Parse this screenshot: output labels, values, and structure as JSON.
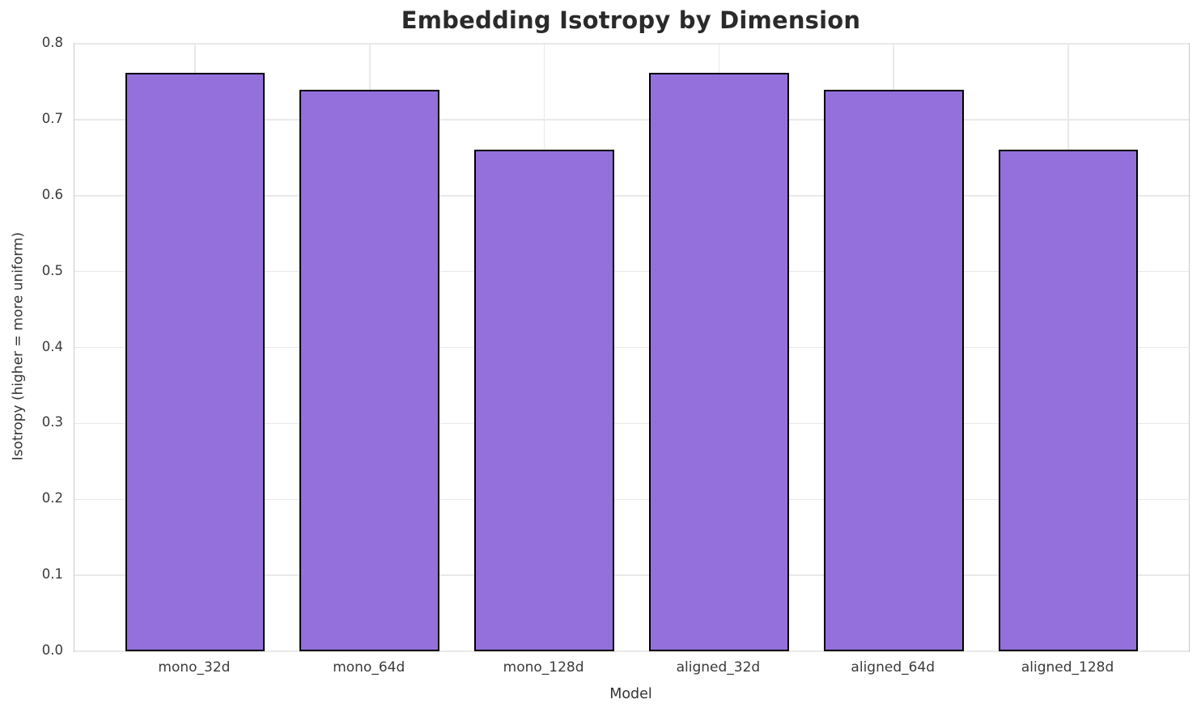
{
  "chart_data": {
    "type": "bar",
    "title": "Embedding Isotropy by Dimension",
    "xlabel": "Model",
    "ylabel": "Isotropy (higher = more uniform)",
    "categories": [
      "mono_32d",
      "mono_64d",
      "mono_128d",
      "aligned_32d",
      "aligned_64d",
      "aligned_128d"
    ],
    "values": [
      0.762,
      0.739,
      0.661,
      0.762,
      0.739,
      0.661
    ],
    "ylim": [
      0.0,
      0.8
    ],
    "yticks": [
      0.0,
      0.1,
      0.2,
      0.3,
      0.4,
      0.5,
      0.6,
      0.7,
      0.8
    ],
    "grid": true,
    "legend": "none",
    "colors": {
      "bar_fill": "#9370DB",
      "bar_edge": "#000000",
      "gridline": "#e9e9e9",
      "spine": "#c9c9c9",
      "tick_text": "#3a3a3a",
      "title_text": "#2a2a2a"
    }
  }
}
